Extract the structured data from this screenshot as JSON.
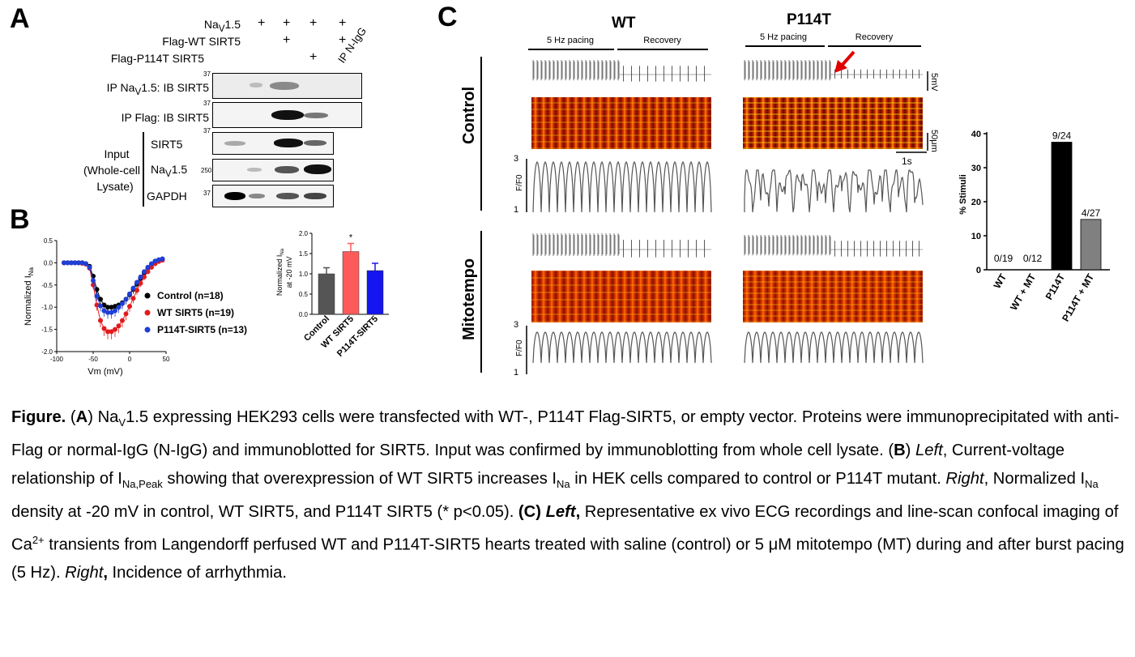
{
  "panels": {
    "a": "A",
    "b": "B",
    "c": "C"
  },
  "panel_a": {
    "conditions": [
      {
        "pre": "Na",
        "sub": "V",
        "post": "1.5",
        "marks": [
          "+",
          "+",
          "+",
          "+"
        ]
      },
      {
        "pre": "Flag-WT SIRT5",
        "sub": "",
        "post": "",
        "marks": [
          "",
          "+",
          "",
          "+"
        ]
      },
      {
        "pre": "Flag-P114T SIRT5",
        "sub": "",
        "post": "",
        "marks": [
          "",
          "",
          "+",
          ""
        ]
      }
    ],
    "ip_n_igg": "IP N-IgG",
    "blot_rows": [
      {
        "pre": "IP Na",
        "sub": "V",
        "post": "1.5: IB SIRT5",
        "mw": "37"
      },
      {
        "pre": "IP Flag: IB SIRT5",
        "sub": "",
        "post": "",
        "mw": "37"
      }
    ],
    "input_label": [
      "Input",
      "(Whole-cell",
      "Lysate)"
    ],
    "input_rows": [
      {
        "pre": "SIRT5",
        "sub": "",
        "post": "",
        "mw": "37"
      },
      {
        "pre": "Na",
        "sub": "V",
        "post": "1.5",
        "mw": "250"
      },
      {
        "pre": "GAPDH",
        "sub": "",
        "post": "",
        "mw": "37"
      }
    ]
  },
  "chart_data": [
    {
      "type": "line",
      "title": "",
      "xlabel": "Vm (mV)",
      "ylabel": "Normalized I",
      "ylabel_sub": "Na",
      "xlim": [
        -100,
        50
      ],
      "ylim": [
        -2.0,
        0.5
      ],
      "x_ticks": [
        "-100",
        "-50",
        "0",
        "50"
      ],
      "y_ticks": [
        "0.5",
        "0.0",
        "-0.5",
        "-1.0",
        "-1.5",
        "-2.0"
      ],
      "x": [
        -90,
        -85,
        -80,
        -75,
        -70,
        -65,
        -60,
        -55,
        -50,
        -45,
        -40,
        -35,
        -30,
        -25,
        -20,
        -15,
        -10,
        -5,
        0,
        5,
        10,
        15,
        20,
        25,
        30,
        35,
        40,
        45
      ],
      "series": [
        {
          "name": "Control",
          "n": "(n=18)",
          "color": "#000000",
          "values": [
            0,
            0,
            0,
            0,
            0,
            0,
            -0.02,
            -0.08,
            -0.3,
            -0.6,
            -0.82,
            -0.95,
            -1.0,
            -1.0,
            -0.98,
            -0.95,
            -0.9,
            -0.82,
            -0.72,
            -0.6,
            -0.48,
            -0.35,
            -0.23,
            -0.12,
            -0.03,
            0.03,
            0.06,
            0.08
          ]
        },
        {
          "name": "WT SIRT5",
          "n": "(n=19)",
          "color": "#e31a1c",
          "values": [
            0,
            0,
            0,
            0,
            0,
            -0.01,
            -0.03,
            -0.12,
            -0.5,
            -0.95,
            -1.3,
            -1.48,
            -1.55,
            -1.55,
            -1.5,
            -1.42,
            -1.3,
            -1.15,
            -0.98,
            -0.8,
            -0.62,
            -0.46,
            -0.32,
            -0.2,
            -0.1,
            -0.02,
            0.03,
            0.06
          ]
        },
        {
          "name": "P114T-SIRT5",
          "n": "(n=13)",
          "color": "#1f3fd6",
          "values": [
            0,
            0,
            0,
            0,
            0,
            0,
            -0.02,
            -0.1,
            -0.4,
            -0.75,
            -0.97,
            -1.08,
            -1.12,
            -1.12,
            -1.08,
            -1.0,
            -0.92,
            -0.82,
            -0.7,
            -0.57,
            -0.44,
            -0.32,
            -0.2,
            -0.1,
            -0.02,
            0.04,
            0.07,
            0.09
          ]
        }
      ]
    },
    {
      "type": "bar",
      "title": "",
      "ylabel_lines": [
        "Normalized I",
        "at -20 mV"
      ],
      "ylabel_sub": "Na",
      "ylim": [
        0.0,
        2.0
      ],
      "y_ticks": [
        "2.0",
        "1.5",
        "1.0",
        "0.5",
        "0.0"
      ],
      "categories": [
        "Control",
        "WT SIRT5",
        "P114T-SIRT5"
      ],
      "values": [
        1.0,
        1.55,
        1.08
      ],
      "errors": [
        0.15,
        0.2,
        0.18
      ],
      "colors": [
        "#555555",
        "#ff5a5a",
        "#1515f0"
      ],
      "annotations": [
        "",
        "*",
        ""
      ]
    },
    {
      "type": "bar",
      "title": "",
      "ylabel": "% Stimuli",
      "ylim": [
        0,
        40
      ],
      "y_ticks": [
        "40",
        "30",
        "20",
        "10",
        "0"
      ],
      "categories": [
        "WT",
        "WT + MT",
        "P114T",
        "P114T + MT"
      ],
      "values": [
        0,
        0,
        37.5,
        14.8
      ],
      "data_labels": [
        "0/19",
        "0/12",
        "9/24",
        "4/27"
      ],
      "colors": [
        "#000000",
        "#000000",
        "#000000",
        "#808080"
      ]
    }
  ],
  "panel_c": {
    "col_titles": [
      "WT",
      "P114T"
    ],
    "pacing_label": "5 Hz pacing",
    "recovery_label": "Recovery",
    "row_titles": [
      "Control",
      "Mitotempo"
    ],
    "ff0_label": "F/F0",
    "ff0_ticks": [
      "3",
      "1"
    ],
    "scale_mv": "5mV",
    "scale_um": "50μm",
    "scale_s": "1s"
  },
  "caption": {
    "figure": "Figure.",
    "a_open": " (",
    "a_letter": "A",
    "a_close": ") ",
    "a_na": "Na",
    "a_v": "V",
    "a_text": "1.5 expressing HEK293  cells were transfected with WT-, P114T Flag-SIRT5, or empty vector. Proteins were immunoprecipitated with anti-Flag or normal-IgG (N-IgG) and immunoblotted for SIRT5. Input was confirmed by immunoblotting from whole cell lysate. (",
    "b_letter": "B",
    "b_close": ") ",
    "b_left": "Left",
    "b_text1": ", Current-voltage relationship of I",
    "b_sub1": "Na,Peak",
    "b_text2": " showing that overexpression of WT SIRT5 increases I",
    "b_sub2": "Na",
    "b_text3": " in HEK cells compared to control or P114T mutant. ",
    "b_right": "Right",
    "b_text4": ", Normalized I",
    "b_sub3": "Na",
    "b_text5": " density at -20 mV in control, WT SIRT5, and P114T SIRT5 (* p<0.05). ",
    "c_label": "(C)",
    "c_space": " ",
    "c_left": "Left",
    "c_comma": ",",
    "c_text1": "  Representative ex vivo ECG recordings and line-scan confocal imaging of Ca",
    "c_sup": "2+",
    "c_text2": " transients from Langendorff perfused WT and P114T-SIRT5 hearts treated with saline (control) or 5 μM mitotempo (MT) during and after burst pacing (5 Hz). ",
    "c_right": "Right",
    "c_comma2": ",",
    "c_text3": " Incidence of arrhythmia."
  }
}
